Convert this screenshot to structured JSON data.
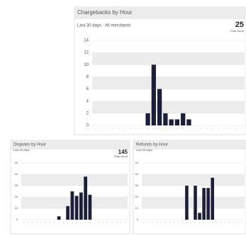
{
  "chart_data": [
    {
      "type": "bar",
      "title": "Chargebacks by Hour",
      "subtitle": "Last 30 days · All merchants",
      "total": 25,
      "total_label": "Total count",
      "categories": [
        null,
        null,
        null,
        null,
        null,
        null,
        null,
        null,
        null,
        null,
        null,
        null,
        null,
        null,
        null,
        null,
        null,
        null,
        null,
        null,
        null,
        null,
        null,
        null,
        null,
        null
      ],
      "values": [
        0,
        0,
        0,
        0,
        0,
        0,
        0,
        0,
        0,
        2,
        10,
        6,
        2,
        1,
        1,
        2,
        1,
        0,
        0,
        0,
        0,
        0,
        0,
        0,
        0,
        0
      ],
      "color": "#1c1f3a",
      "ylim": [
        0,
        14
      ],
      "yticks": [
        0,
        2,
        4,
        6,
        8,
        10,
        12,
        14
      ],
      "grid": true
    },
    {
      "type": "bar",
      "title": "Disputes by Hour",
      "subtitle": "Last 30 days",
      "total": 145,
      "total_label": "Total count",
      "categories": [
        null,
        null,
        null,
        null,
        null,
        null,
        null,
        null,
        null,
        null,
        null,
        null,
        null,
        null,
        null,
        null,
        null,
        null,
        null,
        null,
        null,
        null,
        null,
        null
      ],
      "values": [
        0,
        0,
        0,
        0,
        0,
        0,
        0,
        0,
        3,
        0,
        12,
        25,
        21,
        24,
        38,
        22,
        0,
        0,
        0,
        0,
        0,
        0,
        0,
        0
      ],
      "color": "#1c1f3a",
      "ylim": [
        0,
        50
      ],
      "yticks": [
        0,
        10,
        20,
        30,
        40,
        50
      ],
      "grid": true
    },
    {
      "type": "bar",
      "title": "Refunds by Hour",
      "subtitle": "Last 30 days",
      "categories": [
        null,
        null,
        null,
        null,
        null,
        null,
        null,
        null,
        null,
        null,
        null,
        null,
        null,
        null,
        null,
        null,
        null,
        null,
        null,
        null,
        null,
        null,
        null,
        null
      ],
      "values": [
        0,
        0,
        0,
        0,
        0,
        0,
        0,
        0,
        0,
        0,
        30,
        0,
        30,
        6,
        28,
        28,
        37,
        0,
        0,
        0,
        0,
        0,
        0,
        0
      ],
      "color": "#1c1f3a",
      "ylim": [
        0,
        50
      ],
      "yticks": [
        0,
        10,
        20,
        30,
        40,
        50
      ],
      "grid": true
    }
  ]
}
